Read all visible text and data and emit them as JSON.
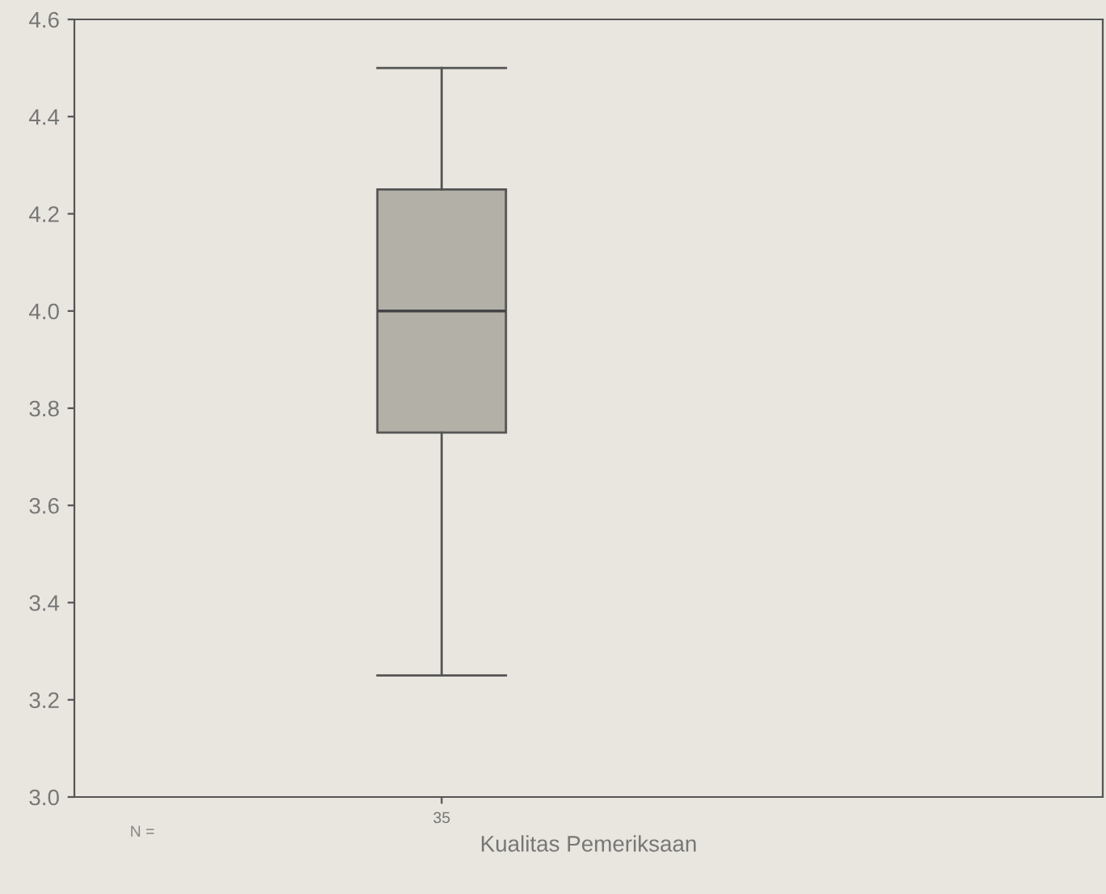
{
  "chart_data": {
    "type": "box",
    "xlabel": "Kualitas Pemeriksaan",
    "categories": [
      "35"
    ],
    "boxes": [
      {
        "low": 3.25,
        "q1": 3.75,
        "median": 4.0,
        "q3": 4.25,
        "high": 4.5
      }
    ],
    "color": "#b3b0a8",
    "ylim": [
      3.0,
      4.6
    ],
    "yticks": [
      {
        "value": 3.0,
        "label": "3.0"
      },
      {
        "value": 3.2,
        "label": "3.2"
      },
      {
        "value": 3.4,
        "label": "3.4"
      },
      {
        "value": 3.6,
        "label": "3.6"
      },
      {
        "value": 3.8,
        "label": "3.8"
      },
      {
        "value": 4.0,
        "label": "4.0"
      },
      {
        "value": 4.2,
        "label": "4.2"
      },
      {
        "value": 4.4,
        "label": "4.4"
      },
      {
        "value": 4.6,
        "label": "4.6"
      }
    ],
    "annotations": [
      "N ="
    ],
    "grid": false
  }
}
